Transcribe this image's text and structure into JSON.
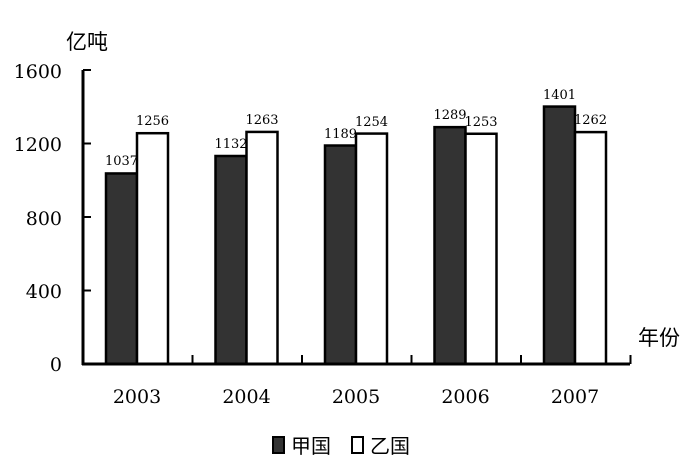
{
  "chart_data": {
    "type": "bar",
    "title": "",
    "ylabel": "亿吨",
    "xlabel": "年份",
    "categories": [
      "2003",
      "2004",
      "2005",
      "2006",
      "2007"
    ],
    "series": [
      {
        "name": "甲国",
        "color": "#333333",
        "values": [
          1037,
          1132,
          1189,
          1289,
          1401
        ]
      },
      {
        "name": "乙国",
        "color": "#ffffff",
        "values": [
          1256,
          1263,
          1254,
          1253,
          1262
        ]
      }
    ],
    "yticks": [
      "0",
      "400",
      "800",
      "1200",
      "1600"
    ],
    "ylim": [
      0,
      1600
    ],
    "grid": false,
    "legend_position": "bottom"
  },
  "labels": {
    "y_unit": "亿吨",
    "x_unit": "年份",
    "legend_a": "甲国",
    "legend_b": "乙国"
  }
}
